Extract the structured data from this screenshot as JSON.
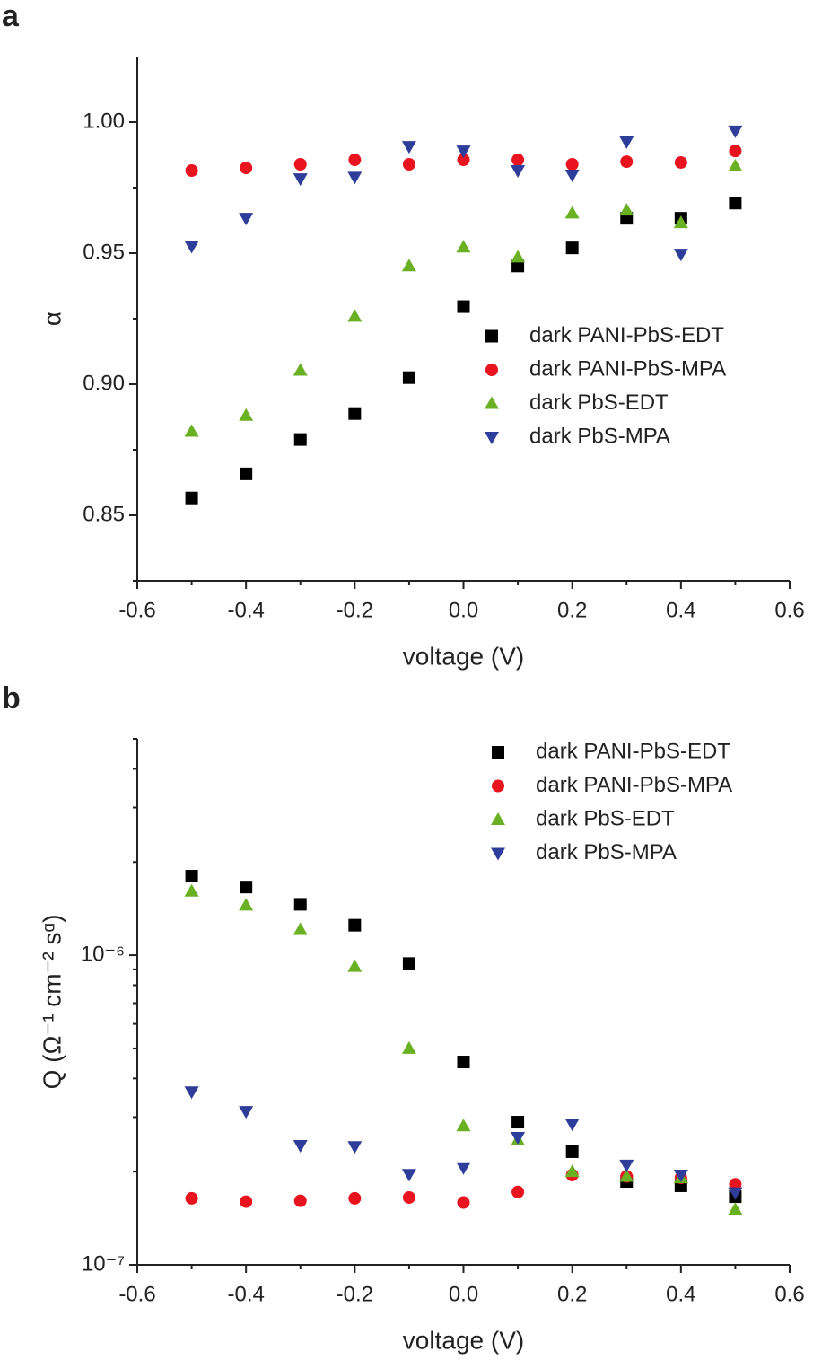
{
  "chart_data": [
    {
      "type": "scatter",
      "panel": "a",
      "xlabel": "voltage (V)",
      "ylabel": "α",
      "xlim": [
        -0.6,
        0.6
      ],
      "xticks": [
        -0.6,
        -0.4,
        -0.2,
        {
          "value": 0,
          "label": "0.0"
        },
        0.2,
        0.4,
        0.6
      ],
      "ylim": [
        0.825,
        1.025
      ],
      "yticks": [
        0.85,
        {
          "value": 0.9,
          "label": "0.90"
        },
        0.95,
        {
          "value": 1,
          "label": "1.00"
        }
      ],
      "yscale": "linear",
      "legend": "lower right",
      "x": [
        -0.5,
        -0.4,
        -0.3,
        -0.2,
        -0.1,
        0,
        0.1,
        0.2,
        0.3,
        0.4,
        0.5
      ],
      "series": [
        {
          "name": "dark PANI-PbS-EDT",
          "color": "#000000",
          "marker": "square",
          "values": [
            0.8566,
            0.8658,
            0.8789,
            0.8888,
            0.9025,
            0.9296,
            0.9451,
            0.952,
            0.9633,
            0.9633,
            0.9691
          ]
        },
        {
          "name": "dark PANI-PbS-MPA",
          "color": "#e8131f",
          "marker": "circle",
          "values": [
            0.9815,
            0.9825,
            0.9839,
            0.9856,
            0.9839,
            0.9856,
            0.9856,
            0.9839,
            0.9849,
            0.9846,
            0.989
          ]
        },
        {
          "name": "dark PbS-EDT",
          "color": "#6ab023",
          "marker": "triangle-up",
          "values": [
            0.882,
            0.8881,
            0.9053,
            0.9259,
            0.9451,
            0.9523,
            0.9485,
            0.9653,
            0.9664,
            0.9616,
            0.9832
          ]
        },
        {
          "name": "dark PbS-MPA",
          "color": "#2e3d9a",
          "marker": "triangle-down",
          "values": [
            0.9526,
            0.9633,
            0.9784,
            0.979,
            0.9907,
            0.989,
            0.9815,
            0.9798,
            0.9925,
            0.9496,
            0.9966
          ]
        }
      ]
    },
    {
      "type": "scatter",
      "panel": "b",
      "xlabel": "voltage (V)",
      "ylabel": "Q (Ω⁻¹ cm⁻² sᵅ)",
      "xlim": [
        -0.6,
        0.6
      ],
      "xticks": [
        -0.6,
        -0.4,
        -0.2,
        {
          "value": 0,
          "label": "0.0"
        },
        0.2,
        0.4,
        0.6
      ],
      "ylim": [
        1e-07,
        5e-06
      ],
      "yticks": [
        {
          "value": 1e-07,
          "label": "10⁻⁷"
        },
        {
          "value": 1e-06,
          "label": "10⁻⁶"
        }
      ],
      "yscale": "log",
      "legend": "upper right",
      "x": [
        -0.5,
        -0.4,
        -0.3,
        -0.2,
        -0.1,
        0,
        0.1,
        0.2,
        0.3,
        0.4,
        0.5
      ],
      "series": [
        {
          "name": "dark PANI-PbS-EDT",
          "color": "#000000",
          "marker": "square",
          "values": [
            1.8e-06,
            1.66e-06,
            1.46e-06,
            1.25e-06,
            9.4e-07,
            4.52e-07,
            2.89e-07,
            2.32e-07,
            1.86e-07,
            1.8e-07,
            1.66e-07
          ]
        },
        {
          "name": "dark PANI-PbS-MPA",
          "color": "#e8131f",
          "marker": "circle",
          "values": [
            1.64e-07,
            1.6e-07,
            1.61e-07,
            1.64e-07,
            1.65e-07,
            1.59e-07,
            1.72e-07,
            1.95e-07,
            1.93e-07,
            1.91e-07,
            1.82e-07
          ]
        },
        {
          "name": "dark PbS-EDT",
          "color": "#6ab023",
          "marker": "triangle-up",
          "values": [
            1.61e-06,
            1.45e-06,
            1.21e-06,
            9.2e-07,
            5e-07,
            2.81e-07,
            2.53e-07,
            2e-07,
            1.93e-07,
            1.91e-07,
            1.51e-07
          ]
        },
        {
          "name": "dark PbS-MPA",
          "color": "#2e3d9a",
          "marker": "triangle-down",
          "values": [
            3.62e-07,
            3.13e-07,
            2.43e-07,
            2.41e-07,
            1.96e-07,
            2.06e-07,
            2.58e-07,
            2.85e-07,
            2.1e-07,
            1.95e-07,
            1.71e-07
          ]
        }
      ]
    }
  ]
}
